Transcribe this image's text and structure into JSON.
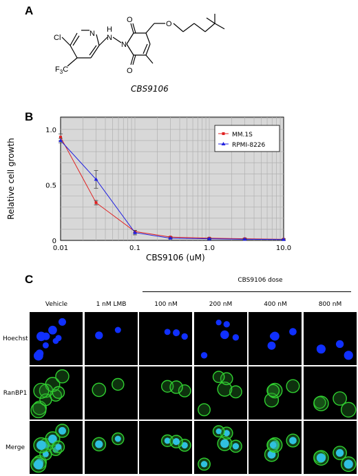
{
  "panels": {
    "a": "A",
    "b": "B",
    "c": "C"
  },
  "structure": {
    "compound_name": "CBS9106",
    "atoms": {
      "cl": "Cl",
      "n_pyridine": "N",
      "nh_n": "N",
      "nh_h": "H",
      "n_imide": "N",
      "f3c": "F",
      "f3c_sub": "3",
      "f3c_c": "C",
      "o_top": "O",
      "o_bottom": "O",
      "o_ether": "O"
    }
  },
  "chart_data": {
    "type": "line",
    "x": [
      0.01,
      0.03,
      0.1,
      0.3,
      1.0,
      3.0,
      10.0
    ],
    "series": [
      {
        "name": "MM.1S",
        "values": [
          0.93,
          0.34,
          0.08,
          0.03,
          0.02,
          0.015,
          0.01
        ],
        "errors": [
          0.03,
          0.02,
          0.01,
          0.005,
          0.005,
          0.005,
          0.005
        ],
        "color": "#e02020",
        "marker": "square"
      },
      {
        "name": "RPMI-8226",
        "values": [
          0.9,
          0.55,
          0.07,
          0.02,
          0.015,
          0.01,
          0.008
        ],
        "errors": [
          0.02,
          0.08,
          0.02,
          0.005,
          0.005,
          0.005,
          0.005
        ],
        "color": "#2020e0",
        "marker": "triangle"
      }
    ],
    "xlabel": "CBS9106 (uM)",
    "ylabel": "Relative cell growth",
    "xscale": "log",
    "xlim": [
      0.01,
      10.0
    ],
    "ylim": [
      0,
      1.0
    ],
    "xticks": [
      "0.01",
      "0.1",
      "1.0",
      "10.0"
    ],
    "yticks": [
      "0",
      "0.5",
      "1.0"
    ],
    "grid": true,
    "background": "#d8d8d8",
    "legend_position": "top-right"
  },
  "microscopy": {
    "dose_header": "CBS9106 dose",
    "columns": [
      "Vehicle",
      "1 nM LMB",
      "100 nM",
      "200 nM",
      "400 nM",
      "800 nM"
    ],
    "rows": [
      "Hoechst",
      "RanBP1",
      "Merge"
    ],
    "colors": {
      "hoechst": "#1030ff",
      "ranbp1": "#30d030",
      "merge_nuc": "#30c0e0"
    }
  }
}
